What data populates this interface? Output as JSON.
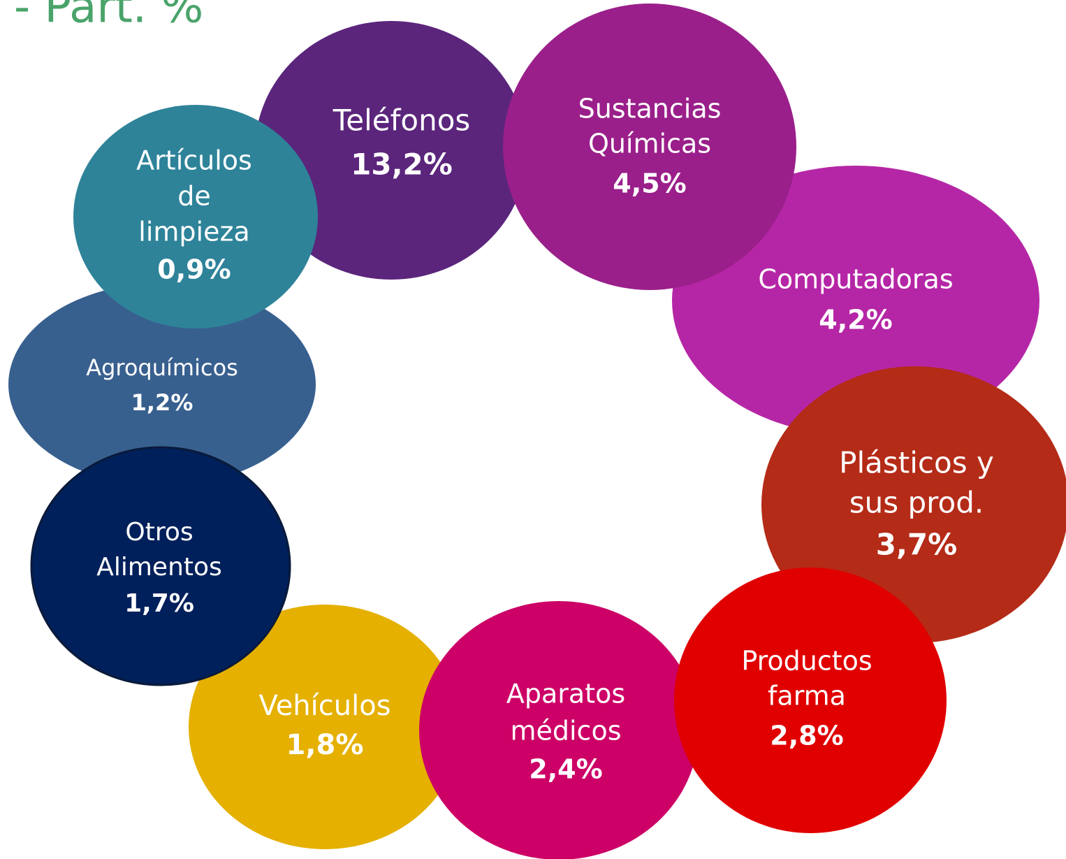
{
  "title": "- Part. %",
  "nodes": [
    {
      "label": [
        "Teléfonos"
      ],
      "value": "13,2%",
      "color": "#5b257c"
    },
    {
      "label": [
        "Computadoras"
      ],
      "value": "4,2%",
      "color": "#b526a6"
    },
    {
      "label": [
        "Sustancias",
        "Químicas"
      ],
      "value": "4,5%",
      "color": "#9a1f8a"
    },
    {
      "label": [
        "Plásticos y",
        "sus prod."
      ],
      "value": "3,7%",
      "color": "#b42b17"
    },
    {
      "label": [
        "Vehículos"
      ],
      "value": "1,8%",
      "color": "#e5b000"
    },
    {
      "label": [
        "Aparatos",
        "médicos"
      ],
      "value": "2,4%",
      "color": "#cc0066"
    },
    {
      "label": [
        "Productos",
        "farma"
      ],
      "value": "2,8%",
      "color": "#e00000"
    },
    {
      "label": [
        "Agroquímicos"
      ],
      "value": "1,2%",
      "color": "#38608f"
    },
    {
      "label": [
        "Artículos",
        "de",
        "limpieza"
      ],
      "value": "0,9%",
      "color": "#2e8399"
    },
    {
      "label": [
        "Otros",
        "Alimentos"
      ],
      "value": "1,7%",
      "color": "#00205b"
    }
  ]
}
